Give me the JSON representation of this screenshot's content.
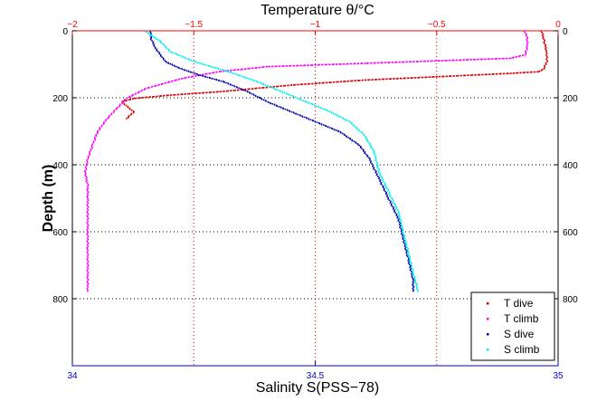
{
  "chart_data": {
    "type": "scatter",
    "top_axis": {
      "label": "Temperature θ/°C",
      "range": [
        -2,
        0
      ],
      "ticks": [
        -2,
        -1.5,
        -1,
        -0.5,
        0
      ],
      "tick_labels": [
        "−2",
        "−1.5",
        "−1",
        "−0.5",
        "0"
      ],
      "color": "#ff0000"
    },
    "bottom_axis": {
      "label": "Salinity S(PSS−78)",
      "range": [
        34,
        35
      ],
      "ticks": [
        34,
        34.5,
        35
      ],
      "tick_labels": [
        "34",
        "34.5",
        "35"
      ],
      "color": "#0000cc"
    },
    "y_axis": {
      "label": "Depth (m)",
      "range": [
        0,
        1000
      ],
      "inverted": true,
      "ticks": [
        0,
        200,
        400,
        600,
        800
      ],
      "tick_labels": [
        "0",
        "200",
        "400",
        "600",
        "800"
      ]
    },
    "grid": true,
    "legend": {
      "placement": "bottom-right"
    },
    "series": [
      {
        "name": "T dive",
        "axis": "top",
        "color": "#dd0000",
        "points": [
          [
            -0.07,
            0
          ],
          [
            -0.06,
            30
          ],
          [
            -0.05,
            60
          ],
          [
            -0.05,
            90
          ],
          [
            -0.06,
            110
          ],
          [
            -0.08,
            120
          ],
          [
            -0.2,
            125
          ],
          [
            -0.5,
            135
          ],
          [
            -0.8,
            145
          ],
          [
            -1.1,
            160
          ],
          [
            -1.4,
            180
          ],
          [
            -1.6,
            190
          ],
          [
            -1.75,
            200
          ],
          [
            -1.8,
            210
          ],
          [
            -1.75,
            240
          ],
          [
            -1.78,
            260
          ]
        ]
      },
      {
        "name": "T climb",
        "axis": "top",
        "color": "#ff00ff",
        "points": [
          [
            -0.14,
            0
          ],
          [
            -0.13,
            20
          ],
          [
            -0.13,
            50
          ],
          [
            -0.14,
            70
          ],
          [
            -0.2,
            80
          ],
          [
            -0.4,
            85
          ],
          [
            -0.8,
            95
          ],
          [
            -1.2,
            105
          ],
          [
            -1.4,
            120
          ],
          [
            -1.55,
            140
          ],
          [
            -1.7,
            170
          ],
          [
            -1.78,
            200
          ],
          [
            -1.82,
            230
          ],
          [
            -1.86,
            260
          ],
          [
            -1.9,
            300
          ],
          [
            -1.92,
            340
          ],
          [
            -1.94,
            380
          ],
          [
            -1.95,
            420
          ],
          [
            -1.94,
            460
          ],
          [
            -1.94,
            500
          ],
          [
            -1.94,
            550
          ],
          [
            -1.94,
            600
          ],
          [
            -1.94,
            650
          ],
          [
            -1.94,
            700
          ],
          [
            -1.94,
            750
          ],
          [
            -1.94,
            775
          ]
        ]
      },
      {
        "name": "S dive",
        "axis": "bottom",
        "color": "#0000aa",
        "points": [
          [
            34.16,
            0
          ],
          [
            34.16,
            20
          ],
          [
            34.17,
            50
          ],
          [
            34.19,
            90
          ],
          [
            34.22,
            110
          ],
          [
            34.26,
            130
          ],
          [
            34.31,
            150
          ],
          [
            34.36,
            180
          ],
          [
            34.4,
            210
          ],
          [
            34.45,
            240
          ],
          [
            34.5,
            270
          ],
          [
            34.55,
            300
          ],
          [
            34.59,
            340
          ],
          [
            34.61,
            380
          ],
          [
            34.63,
            440
          ],
          [
            34.65,
            500
          ],
          [
            34.67,
            560
          ],
          [
            34.68,
            620
          ],
          [
            34.69,
            680
          ],
          [
            34.7,
            740
          ],
          [
            34.7,
            775
          ]
        ]
      },
      {
        "name": "S climb",
        "axis": "bottom",
        "color": "#00eeee",
        "points": [
          [
            34.15,
            0
          ],
          [
            34.18,
            30
          ],
          [
            34.2,
            60
          ],
          [
            34.25,
            90
          ],
          [
            34.32,
            120
          ],
          [
            34.38,
            150
          ],
          [
            34.43,
            180
          ],
          [
            34.48,
            210
          ],
          [
            34.53,
            240
          ],
          [
            34.57,
            270
          ],
          [
            34.6,
            310
          ],
          [
            34.62,
            360
          ],
          [
            34.63,
            420
          ],
          [
            34.65,
            480
          ],
          [
            34.67,
            540
          ],
          [
            34.68,
            600
          ],
          [
            34.69,
            660
          ],
          [
            34.7,
            720
          ],
          [
            34.71,
            775
          ]
        ]
      }
    ]
  }
}
